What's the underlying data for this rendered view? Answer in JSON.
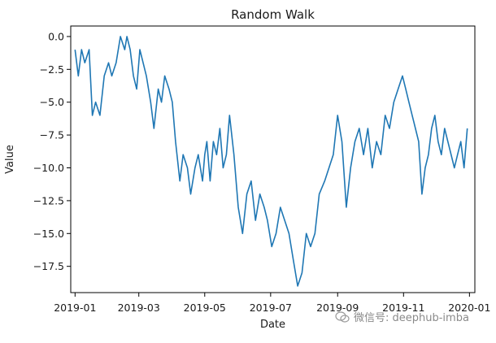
{
  "chart_data": {
    "type": "line",
    "title": "Random Walk",
    "xlabel": "Date",
    "ylabel": "Value",
    "ylim": [
      -19.5,
      0.8
    ],
    "xlim": [
      "2018-12-28",
      "2020-01-06"
    ],
    "grid": false,
    "line_color": "#1f77b4",
    "x_ticks": [
      "2019-01",
      "2019-03",
      "2019-05",
      "2019-07",
      "2019-09",
      "2019-11",
      "2020-01"
    ],
    "x_tick_dates": [
      "2019-01-01",
      "2019-03-01",
      "2019-05-01",
      "2019-07-01",
      "2019-09-01",
      "2019-11-01",
      "2020-01-01"
    ],
    "y_ticks": [
      0.0,
      -2.5,
      -5.0,
      -7.5,
      -10.0,
      -12.5,
      -15.0,
      -17.5
    ],
    "y_tick_labels": [
      "0.0",
      "−2.5",
      "−5.0",
      "−7.5",
      "−10.0",
      "−12.5",
      "−15.0",
      "−17.5"
    ],
    "series": [
      {
        "dates": [
          "2019-01-01",
          "2019-01-04",
          "2019-01-07",
          "2019-01-10",
          "2019-01-14",
          "2019-01-17",
          "2019-01-20",
          "2019-01-24",
          "2019-01-28",
          "2019-02-01",
          "2019-02-04",
          "2019-02-08",
          "2019-02-12",
          "2019-02-16",
          "2019-02-18",
          "2019-02-21",
          "2019-02-24",
          "2019-02-27",
          "2019-03-02",
          "2019-03-05",
          "2019-03-08",
          "2019-03-12",
          "2019-03-15",
          "2019-03-19",
          "2019-03-22",
          "2019-03-25",
          "2019-03-29",
          "2019-04-01",
          "2019-04-04",
          "2019-04-08",
          "2019-04-11",
          "2019-04-15",
          "2019-04-18",
          "2019-04-22",
          "2019-04-25",
          "2019-04-29",
          "2019-05-01",
          "2019-05-03",
          "2019-05-06",
          "2019-05-09",
          "2019-05-12",
          "2019-05-15",
          "2019-05-18",
          "2019-05-21",
          "2019-05-24",
          "2019-05-28",
          "2019-06-01",
          "2019-06-05",
          "2019-06-09",
          "2019-06-13",
          "2019-06-17",
          "2019-06-21",
          "2019-06-25",
          "2019-06-28",
          "2019-07-02",
          "2019-07-06",
          "2019-07-10",
          "2019-07-14",
          "2019-07-18",
          "2019-07-22",
          "2019-07-26",
          "2019-07-30",
          "2019-08-03",
          "2019-08-07",
          "2019-08-11",
          "2019-08-15",
          "2019-08-20",
          "2019-08-24",
          "2019-08-28",
          "2019-09-01",
          "2019-09-05",
          "2019-09-09",
          "2019-09-13",
          "2019-09-17",
          "2019-09-21",
          "2019-09-25",
          "2019-09-29",
          "2019-10-03",
          "2019-10-07",
          "2019-10-11",
          "2019-10-15",
          "2019-10-19",
          "2019-10-23",
          "2019-10-27",
          "2019-10-31",
          "2019-11-03",
          "2019-11-06",
          "2019-11-09",
          "2019-11-12",
          "2019-11-15",
          "2019-11-18",
          "2019-11-21",
          "2019-11-24",
          "2019-11-27",
          "2019-11-30",
          "2019-12-03",
          "2019-12-06",
          "2019-12-09",
          "2019-12-12",
          "2019-12-15",
          "2019-12-18",
          "2019-12-21",
          "2019-12-24",
          "2019-12-27",
          "2019-12-30"
        ],
        "values": [
          -1,
          -3,
          -1,
          -2,
          -1,
          -6,
          -5,
          -6,
          -3,
          -2,
          -3,
          -2,
          0,
          -1,
          0,
          -1,
          -3,
          -4,
          -1,
          -2,
          -3,
          -5,
          -7,
          -4,
          -5,
          -3,
          -4,
          -5,
          -8,
          -11,
          -9,
          -10,
          -12,
          -10,
          -9,
          -11,
          -9,
          -8,
          -11,
          -8,
          -9,
          -7,
          -10,
          -9,
          -6,
          -9,
          -13,
          -15,
          -12,
          -11,
          -14,
          -12,
          -13,
          -14,
          -16,
          -15,
          -13,
          -14,
          -15,
          -17,
          -19,
          -18,
          -15,
          -16,
          -15,
          -12,
          -11,
          -10,
          -9,
          -6,
          -8,
          -13,
          -10,
          -8,
          -7,
          -9,
          -7,
          -10,
          -8,
          -9,
          -6,
          -7,
          -5,
          -4,
          -3,
          -4,
          -5,
          -6,
          -7,
          -8,
          -12,
          -10,
          -9,
          -7,
          -6,
          -8,
          -9,
          -7,
          -8,
          -9,
          -10,
          -9,
          -8,
          -10,
          -7
        ]
      }
    ]
  }
}
